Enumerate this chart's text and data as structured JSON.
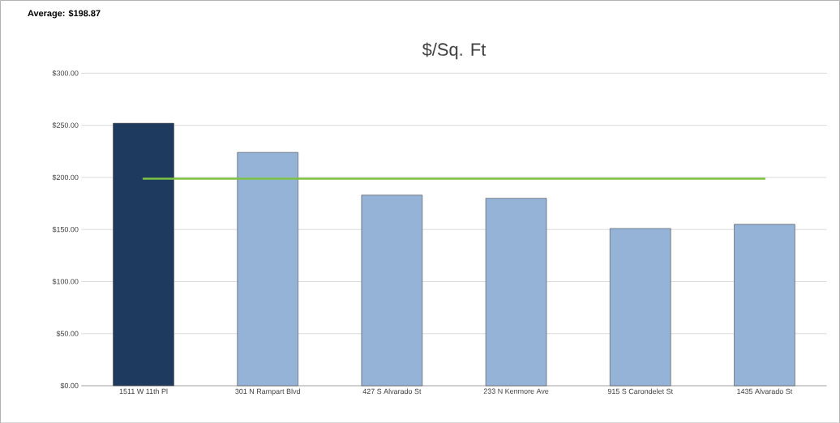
{
  "chart_data": {
    "type": "bar",
    "title": "$/Sq. Ft",
    "categories": [
      "1511 W 11th Pl",
      "301 N Rampart Blvd",
      "427 S Alvarado St",
      "233 N Kenmore Ave",
      "915 S Carondelet St",
      "1435 Alvarado St"
    ],
    "values": [
      252,
      224,
      183,
      180,
      151,
      155
    ],
    "colors": [
      "#1f3a5f",
      "#95b3d7",
      "#95b3d7",
      "#95b3d7",
      "#95b3d7",
      "#95b3d7"
    ],
    "ylim": [
      0,
      300
    ],
    "yticks": [
      {
        "value": 0,
        "label": "$0.00"
      },
      {
        "value": 50,
        "label": "$50.00"
      },
      {
        "value": 100,
        "label": "$100.00"
      },
      {
        "value": 150,
        "label": "$150.00"
      },
      {
        "value": 200,
        "label": "$200.00"
      },
      {
        "value": 250,
        "label": "$250.00"
      },
      {
        "value": 300,
        "label": "$300.00"
      }
    ],
    "grid": "y",
    "annotations": [
      "Average: $198.87"
    ],
    "ref_lines": [
      {
        "axis": "y",
        "value": 198.87,
        "color": "#7dc242"
      }
    ]
  }
}
